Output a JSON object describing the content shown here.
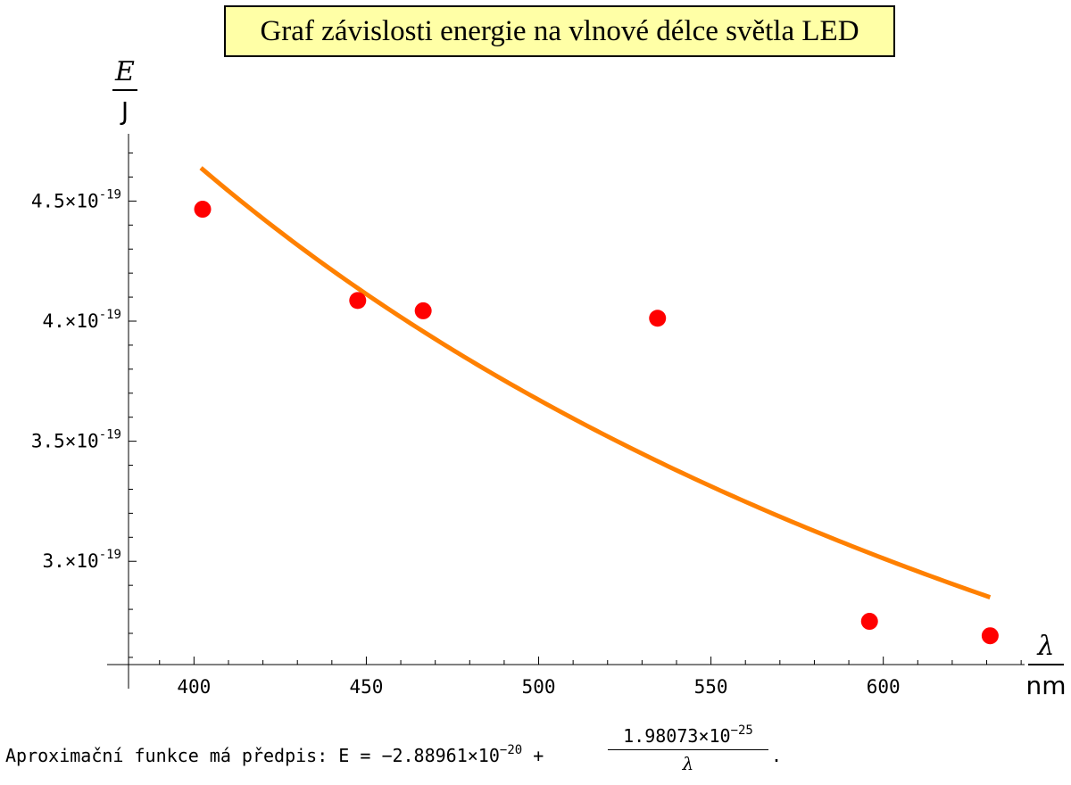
{
  "chart_data": {
    "type": "scatter",
    "title": "Graf závislosti energie na vlnové délce světla LED",
    "xlabel": {
      "symbol": "λ",
      "unit": "nm"
    },
    "ylabel": {
      "symbol": "E",
      "unit": "J"
    },
    "xlim": [
      381,
      641
    ],
    "ylim": [
      2.57e-19,
      4.78e-19
    ],
    "grid": false,
    "x_ticks": [
      {
        "value": 400,
        "label": "400"
      },
      {
        "value": 450,
        "label": "450"
      },
      {
        "value": 500,
        "label": "500"
      },
      {
        "value": 550,
        "label": "550"
      },
      {
        "value": 600,
        "label": "600"
      }
    ],
    "y_ticks": [
      {
        "value": 3e-19,
        "mantissa": "3.",
        "times": "×10",
        "exp": "-19"
      },
      {
        "value": 3.5e-19,
        "mantissa": "3.5",
        "times": "×10",
        "exp": "-19"
      },
      {
        "value": 4e-19,
        "mantissa": "4.",
        "times": "×10",
        "exp": "-19"
      },
      {
        "value": 4.5e-19,
        "mantissa": "4.5",
        "times": "×10",
        "exp": "-19"
      }
    ],
    "points": [
      {
        "x": 402.5,
        "y": 4.466e-19
      },
      {
        "x": 447.5,
        "y": 4.086e-19
      },
      {
        "x": 466.5,
        "y": 4.043e-19
      },
      {
        "x": 534.5,
        "y": 4.012e-19
      },
      {
        "x": 596.0,
        "y": 2.75e-19
      },
      {
        "x": 631.0,
        "y": 2.69e-19
      }
    ],
    "fit": {
      "a": -2.88961e-20,
      "b": 1.98073e-25,
      "x_range": [
        402,
        631
      ]
    },
    "colors": {
      "points": "#ff0000",
      "fit": "#ff8000",
      "axes": "#000000"
    }
  },
  "formula": {
    "lead": "Aproximační funkce má předpis: E = ",
    "const_mantissa": "−2.88961",
    "const_times": "×10",
    "const_exp": "−20",
    "plus": " + ",
    "num_mantissa": "1.98073",
    "num_times": "×10",
    "num_exp": "−25",
    "denominator": "λ",
    "end": "."
  }
}
